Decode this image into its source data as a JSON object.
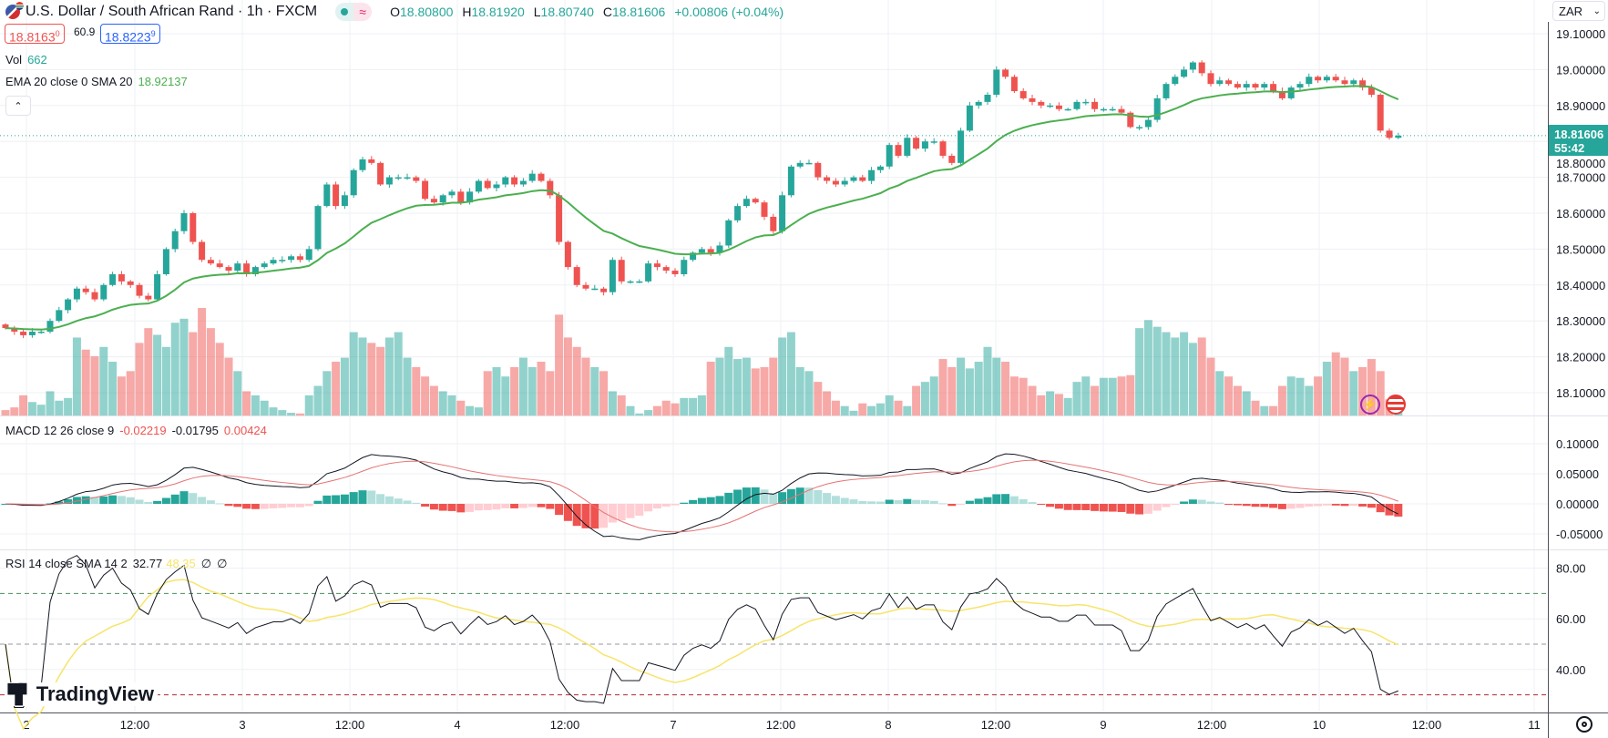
{
  "header": {
    "title": "U.S. Dollar / South African Rand · 1h · FXCM",
    "status_icons": [
      "market-open-dot-icon",
      "delayed-wave-icon"
    ],
    "ohlc": {
      "o_label": "O",
      "o": "18.80800",
      "h_label": "H",
      "h": "18.81920",
      "l_label": "L",
      "l": "18.80740",
      "c_label": "C",
      "c": "18.81606",
      "change": "+0.00806 (+0.04%)"
    },
    "bid": "18.8163",
    "bid_sup": "0",
    "spread": "60.9",
    "ask": "18.8223",
    "ask_sup": "9",
    "vol_label": "Vol",
    "vol_value": "662",
    "ema_label": "EMA 20 close 0 SMA 20",
    "ema_value": "18.92137",
    "collapse_icon": "chevron-up-icon"
  },
  "currency": {
    "selected": "ZAR"
  },
  "current_price": {
    "value": "18.81606",
    "countdown": "55:42"
  },
  "macd_legend": {
    "label": "MACD 12 26 close 9",
    "hist": "-0.02219",
    "macd": "-0.01795",
    "signal": "0.00424"
  },
  "rsi_legend": {
    "label": "RSI 14 close SMA 14 2",
    "rsi": "32.77",
    "sma": "48.35",
    "v3": "∅",
    "v4": "∅"
  },
  "logo": {
    "text": "TradingView"
  },
  "colors": {
    "up": "#26a69a",
    "down": "#ef5350",
    "ema": "#4caf50",
    "macd": "#131722",
    "signal": "#e57373",
    "rsi": "#131722",
    "rsi_sma": "#f7e46a"
  },
  "chart_data": {
    "type": "candlestick",
    "price_axis_ticks": [
      "19.10000",
      "19.00000",
      "18.90000",
      "18.80000",
      "18.70000",
      "18.60000",
      "18.50000",
      "18.40000",
      "18.30000",
      "18.20000",
      "18.10000"
    ],
    "price_ylim": [
      18.05,
      19.1
    ],
    "macd_axis_ticks": [
      "0.10000",
      "0.05000",
      "0.00000",
      "-0.05000"
    ],
    "rsi_axis_ticks": [
      "80.00",
      "60.00",
      "40.00"
    ],
    "rsi_levels": [
      70,
      50,
      30
    ],
    "time_axis_ticks": [
      "2",
      "12:00",
      "3",
      "12:00",
      "4",
      "12:00",
      "7",
      "12:00",
      "8",
      "12:00",
      "9",
      "12:00",
      "10",
      "12:00",
      "11"
    ],
    "ema_period": 20,
    "macd_params": [
      12,
      26,
      9
    ],
    "rsi_period": 14,
    "close": [
      18.28,
      18.27,
      18.26,
      18.27,
      18.27,
      18.3,
      18.33,
      18.36,
      18.39,
      18.38,
      18.36,
      18.4,
      18.43,
      18.41,
      18.4,
      18.37,
      18.36,
      18.43,
      18.5,
      18.55,
      18.6,
      18.52,
      18.47,
      18.46,
      18.45,
      18.44,
      18.46,
      18.43,
      18.45,
      18.46,
      18.47,
      18.47,
      18.48,
      18.47,
      18.5,
      18.62,
      18.68,
      18.62,
      18.65,
      18.72,
      18.75,
      18.74,
      18.68,
      18.7,
      18.7,
      18.7,
      18.69,
      18.64,
      18.63,
      18.65,
      18.66,
      18.63,
      18.66,
      18.69,
      18.67,
      18.68,
      18.7,
      18.68,
      18.69,
      18.71,
      18.69,
      18.65,
      18.52,
      18.45,
      18.4,
      18.39,
      18.39,
      18.38,
      18.47,
      18.41,
      18.41,
      18.41,
      18.46,
      18.45,
      18.44,
      18.43,
      18.47,
      18.49,
      18.5,
      18.49,
      18.51,
      18.58,
      18.62,
      18.64,
      18.63,
      18.59,
      18.55,
      18.65,
      18.73,
      18.74,
      18.74,
      18.7,
      18.69,
      18.68,
      18.69,
      18.7,
      18.69,
      18.72,
      18.73,
      18.79,
      18.76,
      18.81,
      18.78,
      18.8,
      18.8,
      18.76,
      18.74,
      18.83,
      18.9,
      18.91,
      18.93,
      19.0,
      18.98,
      18.94,
      18.92,
      18.91,
      18.9,
      18.9,
      18.89,
      18.89,
      18.91,
      18.91,
      18.89,
      18.89,
      18.89,
      18.88,
      18.84,
      18.84,
      18.86,
      18.92,
      18.96,
      18.98,
      19.0,
      19.02,
      18.99,
      18.96,
      18.97,
      18.96,
      18.95,
      18.96,
      18.95,
      18.96,
      18.94,
      18.92,
      18.95,
      18.96,
      18.98,
      18.97,
      18.98,
      18.97,
      18.96,
      18.97,
      18.95,
      18.93,
      18.83,
      18.81,
      18.81606
    ],
    "volume": [
      400,
      600,
      1500,
      1000,
      800,
      1800,
      1100,
      1300,
      5800,
      4900,
      4400,
      5100,
      4000,
      2900,
      3300,
      5400,
      6500,
      6000,
      5100,
      6900,
      7200,
      6200,
      8000,
      6500,
      5400,
      4300,
      3300,
      1800,
      1500,
      1100,
      600,
      400,
      200,
      150,
      1500,
      2200,
      3300,
      4000,
      4300,
      6200,
      5800,
      5400,
      5100,
      5800,
      6200,
      4300,
      3600,
      2900,
      2200,
      1800,
      1500,
      1100,
      700,
      600,
      3300,
      3600,
      2900,
      3600,
      4300,
      3600,
      4000,
      3300,
      7500,
      5800,
      5100,
      4300,
      3600,
      3300,
      1800,
      1500,
      700,
      150,
      400,
      700,
      1100,
      900,
      1300,
      1300,
      1500,
      4000,
      4300,
      5100,
      4200,
      4300,
      3500,
      3600,
      4300,
      5800,
      6200,
      3600,
      3300,
      2500,
      1800,
      1100,
      700,
      350,
      900,
      700,
      900,
      1500,
      1100,
      700,
      2200,
      2500,
      2900,
      4200,
      3600,
      4300,
      3500,
      4000,
      5100,
      4300,
      4000,
      2900,
      2800,
      2200,
      1500,
      1800,
      1600,
      1300,
      2500,
      2900,
      2200,
      2800,
      2800,
      2900,
      3000,
      6500,
      7100,
      6600,
      6200,
      5800,
      6200,
      5400,
      5800,
      4300,
      3300,
      2900,
      2200,
      1800,
      1100,
      700,
      700,
      2200,
      2900,
      2800,
      2200,
      2900,
      4000,
      4700,
      4300,
      3300,
      3600,
      4200,
      3300,
      1200,
      662
    ]
  }
}
